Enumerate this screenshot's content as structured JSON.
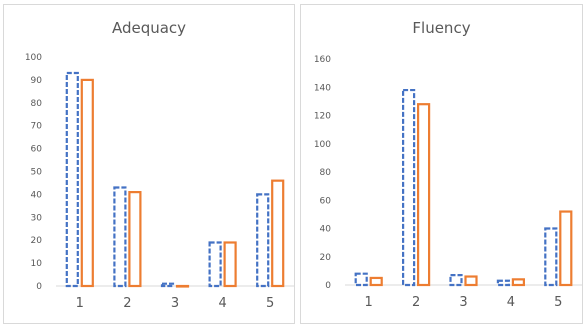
{
  "chart_data": [
    {
      "type": "bar",
      "title": "Adequacy",
      "categories": [
        "1",
        "2",
        "3",
        "4",
        "5"
      ],
      "yticks": [
        0,
        10,
        20,
        30,
        40,
        50,
        60,
        70,
        80,
        90,
        100
      ],
      "ylim": [
        0,
        100
      ],
      "grid": false,
      "series": [
        {
          "values": [
            93,
            43,
            1,
            19,
            40
          ],
          "color": "#4472c4",
          "style": "dashed"
        },
        {
          "values": [
            90,
            41,
            0,
            19,
            46
          ],
          "color": "#ed7d31",
          "style": "solid"
        }
      ]
    },
    {
      "type": "bar",
      "title": "Fluency",
      "categories": [
        "1",
        "2",
        "3",
        "4",
        "5"
      ],
      "yticks": [
        0,
        20,
        40,
        60,
        80,
        100,
        120,
        140,
        160
      ],
      "ylim": [
        0,
        160
      ],
      "grid": false,
      "series": [
        {
          "values": [
            8,
            138,
            7,
            3,
            40
          ],
          "color": "#4472c4",
          "style": "dashed"
        },
        {
          "values": [
            5,
            128,
            6,
            4,
            52
          ],
          "color": "#ed7d31",
          "style": "solid"
        }
      ]
    }
  ]
}
